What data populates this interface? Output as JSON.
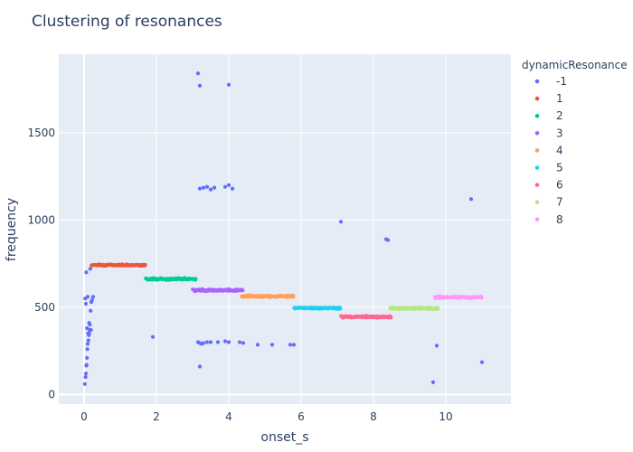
{
  "chart_data": {
    "type": "scatter",
    "title": "Clustering of resonances",
    "xlabel": "onset_s",
    "ylabel": "frequency",
    "xlim": [
      -0.7,
      11.8
    ],
    "ylim": [
      -55,
      1950
    ],
    "xticks": [
      0,
      2,
      4,
      6,
      8,
      10
    ],
    "yticks": [
      0,
      500,
      1000,
      1500
    ],
    "grid": true,
    "legend": {
      "title": "dynamicResonance",
      "position": "right"
    },
    "series": [
      {
        "name": "-1",
        "color": "#636efa",
        "x": [
          0.02,
          0.04,
          0.05,
          0.06,
          0.07,
          0.08,
          0.09,
          0.1,
          0.12,
          0.13,
          0.14,
          0.15,
          0.16,
          0.18,
          0.2,
          0.22,
          0.25,
          0.03,
          0.05,
          0.08,
          0.11,
          0.14,
          0.1,
          0.06,
          0.17,
          0.19,
          1.9,
          3.15,
          3.2,
          3.25,
          3.3,
          3.4,
          3.5,
          3.7,
          3.9,
          4.0,
          4.3,
          4.4,
          4.8,
          5.2,
          5.7,
          5.8,
          3.2,
          3.3,
          3.4,
          3.6,
          3.9,
          4.0,
          4.1,
          3.5,
          3.15,
          3.2,
          4.0,
          3.2,
          7.1,
          8.35,
          8.4,
          9.65,
          9.75,
          10.7,
          11.0
        ],
        "y": [
          60,
          100,
          120,
          165,
          170,
          210,
          260,
          290,
          310,
          340,
          350,
          370,
          400,
          480,
          530,
          540,
          560,
          550,
          520,
          380,
          350,
          410,
          560,
          700,
          720,
          370,
          330,
          300,
          295,
          290,
          295,
          300,
          300,
          300,
          305,
          300,
          300,
          295,
          285,
          285,
          285,
          285,
          1180,
          1185,
          1190,
          1185,
          1190,
          1200,
          1180,
          1175,
          1840,
          1770,
          1775,
          160,
          990,
          890,
          885,
          70,
          280,
          1120,
          185
        ]
      },
      {
        "name": "1",
        "color": "#ef553b",
        "cluster": {
          "x": [
            0.2,
            1.7
          ],
          "y_mean": 742,
          "y_spread": 7
        }
      },
      {
        "name": "2",
        "color": "#00cc96",
        "cluster": {
          "x": [
            1.7,
            3.1
          ],
          "y_mean": 662,
          "y_spread": 9
        }
      },
      {
        "name": "3",
        "color": "#ab63fa",
        "cluster": {
          "x": [
            3.0,
            4.4
          ],
          "y_mean": 598,
          "y_spread": 9
        }
      },
      {
        "name": "4",
        "color": "#ffa15a",
        "cluster": {
          "x": [
            4.35,
            5.8
          ],
          "y_mean": 563,
          "y_spread": 9
        }
      },
      {
        "name": "5",
        "color": "#19d3f3",
        "cluster": {
          "x": [
            5.8,
            7.1
          ],
          "y_mean": 495,
          "y_spread": 8
        }
      },
      {
        "name": "6",
        "color": "#ff6692",
        "cluster": {
          "x": [
            7.1,
            8.5
          ],
          "y_mean": 445,
          "y_spread": 8
        }
      },
      {
        "name": "7",
        "color": "#b6e880",
        "cluster": {
          "x": [
            8.45,
            9.8
          ],
          "y_mean": 493,
          "y_spread": 9
        }
      },
      {
        "name": "8",
        "color": "#ff97ff",
        "cluster": {
          "x": [
            9.7,
            11.0
          ],
          "y_mean": 557,
          "y_spread": 8
        }
      }
    ]
  }
}
